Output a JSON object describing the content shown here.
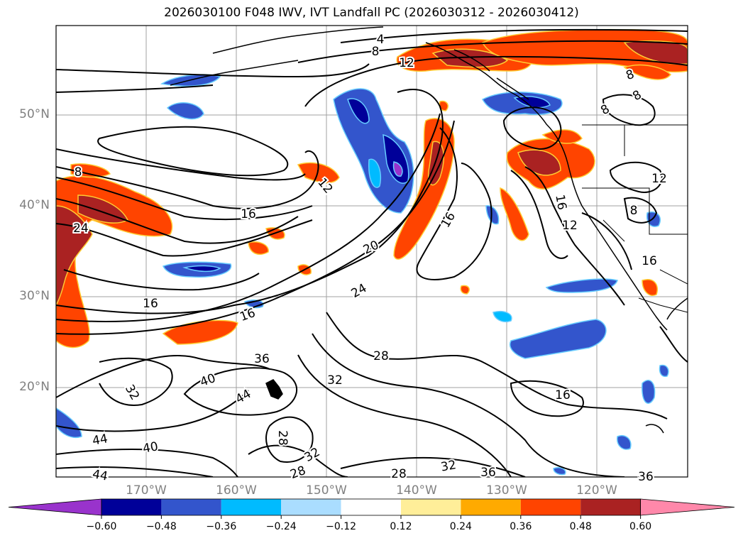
{
  "title": "2026030100 F048 IWV, IVT Landfall PC (2026030312 - 2026030412)",
  "latitude_labels": [
    "50°N",
    "40°N",
    "30°N",
    "20°N"
  ],
  "longitude_labels": [
    "170°W",
    "160°W",
    "150°W",
    "140°W",
    "130°W",
    "120°W"
  ],
  "contour_labels": [
    "4",
    "8",
    "12",
    "8",
    "8",
    "8",
    "12",
    "12",
    "8",
    "24",
    "16",
    "16",
    "16",
    "20",
    "24",
    "16",
    "12",
    "16",
    "8",
    "16",
    "36",
    "28",
    "40",
    "32",
    "32",
    "44",
    "16",
    "44",
    "28",
    "32",
    "40",
    "44",
    "28",
    "28",
    "32",
    "36",
    "36"
  ],
  "colorbar": {
    "ticks": [
      "−0.60",
      "−0.48",
      "−0.36",
      "−0.24",
      "−0.12",
      "0.12",
      "0.24",
      "0.36",
      "0.48",
      "0.60"
    ],
    "colors": [
      "#9933cc",
      "#000099",
      "#3355cc",
      "#00bbff",
      "#aaddff",
      "#ffffff",
      "#ffee99",
      "#ffaa00",
      "#ff4400",
      "#aa2222",
      "#ff88aa"
    ]
  },
  "colors": {
    "contour": "#000000",
    "grid": "#a0a0a0",
    "coast": "#000000"
  }
}
